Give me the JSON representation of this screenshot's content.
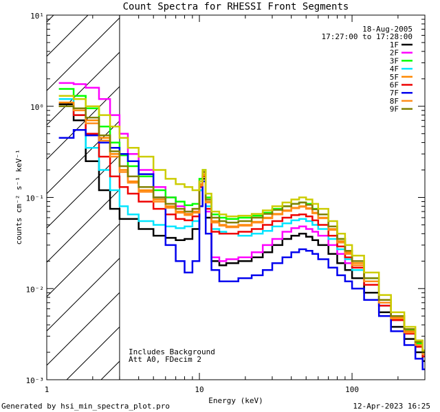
{
  "chart_data": {
    "type": "line",
    "title": "Count Spectra for RHESSI Front Segments",
    "xlabel": "Energy (keV)",
    "ylabel": "counts cm⁻² s⁻¹ keV⁻¹",
    "xscale": "log",
    "yscale": "log",
    "xlim": [
      1,
      300
    ],
    "ylim": [
      0.001,
      10
    ],
    "x_ticks": [
      {
        "value": 1,
        "label": "1"
      },
      {
        "value": 10,
        "label": "10"
      },
      {
        "value": 100,
        "label": "100"
      }
    ],
    "y_ticks": [
      {
        "value": 0.001,
        "label": "10⁻³"
      },
      {
        "value": 0.01,
        "label": "10⁻²"
      },
      {
        "value": 0.1,
        "label": "10⁻¹"
      },
      {
        "value": 1,
        "label": "10⁰"
      },
      {
        "value": 10,
        "label": "10¹"
      }
    ],
    "shaded_region": {
      "xmin": 1,
      "xmax": 3,
      "style": "diagonal hatch"
    },
    "date": "18-Aug-2005",
    "time_range": "17:27:00 to 17:28:00",
    "annotations": [
      "Includes Background",
      "Att A0, FDecim 2"
    ],
    "legend_position": "top-right",
    "series": [
      {
        "name": "1F",
        "color": "#000000",
        "x": [
          1.2,
          1.5,
          1.8,
          2.2,
          2.6,
          3.0,
          3.4,
          4.0,
          5.0,
          6.0,
          7.0,
          8.0,
          9.0,
          10.0,
          10.5,
          11.0,
          12.0,
          13.5,
          15,
          18,
          22,
          26,
          30,
          35,
          40,
          45,
          50,
          55,
          60,
          70,
          80,
          90,
          100,
          120,
          150,
          180,
          220,
          260,
          290
        ],
        "values": [
          1.05,
          0.7,
          0.25,
          0.12,
          0.075,
          0.058,
          0.058,
          0.045,
          0.038,
          0.036,
          0.034,
          0.035,
          0.045,
          0.12,
          0.16,
          0.06,
          0.02,
          0.018,
          0.019,
          0.02,
          0.022,
          0.025,
          0.03,
          0.035,
          0.038,
          0.04,
          0.037,
          0.034,
          0.03,
          0.024,
          0.019,
          0.016,
          0.013,
          0.009,
          0.0055,
          0.0038,
          0.0028,
          0.002,
          0.0016
        ]
      },
      {
        "name": "2F",
        "color": "#ff00ff",
        "x": [
          1.2,
          1.5,
          1.8,
          2.2,
          2.6,
          3.0,
          3.4,
          4.0,
          5.0,
          6.0,
          7.0,
          8.0,
          9.0,
          10.0,
          10.5,
          11.0,
          12.0,
          13.5,
          15,
          18,
          22,
          26,
          30,
          35,
          40,
          45,
          50,
          55,
          60,
          70,
          80,
          90,
          100,
          120,
          150,
          180,
          220,
          260,
          290
        ],
        "values": [
          1.8,
          1.75,
          1.6,
          1.2,
          0.8,
          0.5,
          0.3,
          0.2,
          0.13,
          0.1,
          0.08,
          0.07,
          0.075,
          0.15,
          0.19,
          0.07,
          0.022,
          0.02,
          0.021,
          0.022,
          0.025,
          0.03,
          0.035,
          0.042,
          0.046,
          0.048,
          0.045,
          0.042,
          0.038,
          0.03,
          0.024,
          0.019,
          0.016,
          0.011,
          0.0065,
          0.0045,
          0.0032,
          0.0023,
          0.0018
        ]
      },
      {
        "name": "3F",
        "color": "#00ff00",
        "x": [
          1.2,
          1.5,
          1.8,
          2.2,
          2.6,
          3.0,
          3.4,
          4.0,
          5.0,
          6.0,
          7.0,
          8.0,
          9.0,
          10.0,
          10.5,
          11.0,
          12.0,
          13.5,
          15,
          18,
          22,
          26,
          30,
          35,
          40,
          45,
          50,
          55,
          60,
          70,
          80,
          90,
          100,
          120,
          150,
          180,
          220,
          260,
          290
        ],
        "values": [
          1.55,
          1.3,
          0.95,
          0.6,
          0.4,
          0.29,
          0.22,
          0.17,
          0.12,
          0.1,
          0.09,
          0.082,
          0.085,
          0.16,
          0.2,
          0.1,
          0.065,
          0.06,
          0.058,
          0.06,
          0.063,
          0.068,
          0.075,
          0.08,
          0.085,
          0.088,
          0.085,
          0.075,
          0.065,
          0.048,
          0.035,
          0.026,
          0.02,
          0.013,
          0.0075,
          0.005,
          0.0035,
          0.0025,
          0.002
        ]
      },
      {
        "name": "4F",
        "color": "#00e5ff",
        "x": [
          1.2,
          1.5,
          1.8,
          2.2,
          2.6,
          3.0,
          3.4,
          4.0,
          5.0,
          6.0,
          7.0,
          8.0,
          9.0,
          10.0,
          10.5,
          11.0,
          12.0,
          13.5,
          15,
          18,
          22,
          26,
          30,
          35,
          40,
          45,
          50,
          55,
          60,
          70,
          80,
          90,
          100,
          120,
          150,
          180,
          220,
          260,
          290
        ],
        "values": [
          1.2,
          0.8,
          0.35,
          0.2,
          0.12,
          0.08,
          0.065,
          0.055,
          0.05,
          0.048,
          0.046,
          0.048,
          0.055,
          0.12,
          0.17,
          0.08,
          0.045,
          0.042,
          0.04,
          0.038,
          0.04,
          0.043,
          0.048,
          0.052,
          0.056,
          0.058,
          0.055,
          0.05,
          0.045,
          0.035,
          0.027,
          0.021,
          0.016,
          0.011,
          0.0065,
          0.0045,
          0.0032,
          0.0023,
          0.0018
        ]
      },
      {
        "name": "5F",
        "color": "#ff8800",
        "x": [
          1.2,
          1.5,
          1.8,
          2.2,
          2.6,
          3.0,
          3.4,
          4.0,
          5.0,
          6.0,
          7.0,
          8.0,
          9.0,
          10.0,
          10.5,
          11.0,
          12.0,
          13.5,
          15,
          18,
          22,
          26,
          30,
          35,
          40,
          45,
          50,
          55,
          60,
          70,
          80,
          90,
          100,
          120,
          150,
          180,
          220,
          260,
          290
        ],
        "values": [
          1.1,
          0.95,
          0.7,
          0.45,
          0.3,
          0.2,
          0.15,
          0.12,
          0.095,
          0.08,
          0.07,
          0.066,
          0.07,
          0.14,
          0.18,
          0.09,
          0.055,
          0.05,
          0.048,
          0.05,
          0.054,
          0.06,
          0.066,
          0.072,
          0.077,
          0.08,
          0.076,
          0.068,
          0.06,
          0.045,
          0.033,
          0.025,
          0.019,
          0.012,
          0.007,
          0.0048,
          0.0034,
          0.0024,
          0.0019
        ]
      },
      {
        "name": "6F",
        "color": "#ee0000",
        "x": [
          1.2,
          1.5,
          1.8,
          2.2,
          2.6,
          3.0,
          3.4,
          4.0,
          5.0,
          6.0,
          7.0,
          8.0,
          9.0,
          10.0,
          10.5,
          11.0,
          12.0,
          13.5,
          15,
          18,
          22,
          26,
          30,
          35,
          40,
          45,
          50,
          55,
          60,
          70,
          80,
          90,
          100,
          120,
          150,
          180,
          220,
          260,
          290
        ],
        "values": [
          1.0,
          0.8,
          0.5,
          0.28,
          0.17,
          0.13,
          0.11,
          0.09,
          0.075,
          0.065,
          0.058,
          0.056,
          0.062,
          0.13,
          0.17,
          0.075,
          0.042,
          0.04,
          0.04,
          0.042,
          0.045,
          0.05,
          0.055,
          0.06,
          0.064,
          0.065,
          0.062,
          0.056,
          0.05,
          0.038,
          0.029,
          0.022,
          0.017,
          0.011,
          0.0065,
          0.0045,
          0.0032,
          0.0023,
          0.0018
        ]
      },
      {
        "name": "7F",
        "color": "#0000ee",
        "x": [
          1.2,
          1.5,
          1.8,
          2.2,
          2.6,
          3.0,
          3.4,
          4.0,
          5.0,
          6.0,
          7.0,
          8.0,
          9.0,
          10.0,
          10.5,
          11.0,
          12.0,
          13.5,
          15,
          18,
          22,
          26,
          30,
          35,
          40,
          45,
          50,
          55,
          60,
          70,
          80,
          90,
          100,
          120,
          150,
          180,
          220,
          260,
          290
        ],
        "values": [
          0.45,
          0.55,
          0.48,
          0.4,
          0.35,
          0.3,
          0.25,
          0.18,
          0.1,
          0.03,
          0.02,
          0.015,
          0.02,
          0.08,
          0.15,
          0.04,
          0.016,
          0.012,
          0.012,
          0.013,
          0.014,
          0.016,
          0.019,
          0.022,
          0.025,
          0.027,
          0.026,
          0.024,
          0.021,
          0.017,
          0.014,
          0.012,
          0.01,
          0.0075,
          0.005,
          0.0034,
          0.0024,
          0.0017,
          0.0013
        ]
      },
      {
        "name": "8F",
        "color": "#ff8c1a",
        "x": [
          1.2,
          1.5,
          1.8,
          2.2,
          2.6,
          3.0,
          3.4,
          4.0,
          5.0,
          6.0,
          7.0,
          8.0,
          9.0,
          10.0,
          10.5,
          11.0,
          12.0,
          13.5,
          15,
          18,
          22,
          26,
          30,
          35,
          40,
          45,
          50,
          55,
          60,
          70,
          80,
          90,
          100,
          120,
          150,
          180,
          220,
          260,
          290
        ],
        "values": [
          1.0,
          0.9,
          0.65,
          0.42,
          0.28,
          0.19,
          0.145,
          0.115,
          0.09,
          0.077,
          0.068,
          0.064,
          0.068,
          0.135,
          0.175,
          0.088,
          0.053,
          0.049,
          0.047,
          0.049,
          0.053,
          0.059,
          0.065,
          0.071,
          0.076,
          0.079,
          0.075,
          0.067,
          0.059,
          0.044,
          0.032,
          0.024,
          0.018,
          0.012,
          0.007,
          0.0047,
          0.0033,
          0.0024,
          0.0019
        ]
      },
      {
        "name": "9F",
        "color": "#808000",
        "x": [
          1.2,
          1.5,
          1.8,
          2.2,
          2.6,
          3.0,
          3.4,
          4.0,
          5.0,
          6.0,
          7.0,
          8.0,
          9.0,
          10.0,
          10.5,
          11.0,
          12.0,
          13.5,
          15,
          18,
          22,
          26,
          30,
          35,
          40,
          45,
          50,
          55,
          60,
          70,
          80,
          90,
          100,
          120,
          150,
          180,
          220,
          260,
          290
        ],
        "values": [
          1.0,
          0.95,
          0.75,
          0.48,
          0.32,
          0.22,
          0.17,
          0.13,
          0.1,
          0.085,
          0.075,
          0.07,
          0.075,
          0.15,
          0.19,
          0.095,
          0.06,
          0.055,
          0.053,
          0.055,
          0.06,
          0.066,
          0.073,
          0.08,
          0.085,
          0.088,
          0.083,
          0.074,
          0.065,
          0.048,
          0.035,
          0.026,
          0.02,
          0.013,
          0.0075,
          0.005,
          0.0036,
          0.0026,
          0.002
        ]
      },
      {
        "name": "",
        "color": "#cccc00",
        "x": [
          1.2,
          1.5,
          1.8,
          2.2,
          2.6,
          3.0,
          3.4,
          4.0,
          5.0,
          6.0,
          7.0,
          8.0,
          9.0,
          10.0,
          10.5,
          11.0,
          12.0,
          13.5,
          15,
          18,
          22,
          26,
          30,
          35,
          40,
          45,
          50,
          55,
          60,
          70,
          80,
          90,
          100,
          120,
          150,
          180,
          220,
          260,
          290
        ],
        "values": [
          1.3,
          1.2,
          1.0,
          0.8,
          0.6,
          0.45,
          0.35,
          0.28,
          0.2,
          0.16,
          0.14,
          0.13,
          0.12,
          0.15,
          0.2,
          0.11,
          0.07,
          0.065,
          0.062,
          0.063,
          0.066,
          0.072,
          0.08,
          0.088,
          0.095,
          0.1,
          0.095,
          0.085,
          0.075,
          0.055,
          0.04,
          0.03,
          0.023,
          0.015,
          0.0085,
          0.0055,
          0.0038,
          0.0027,
          0.0021
        ]
      }
    ]
  },
  "footer": {
    "generated_by": "Generated by hsi_min_spectra_plot.pro",
    "timestamp": "12-Apr-2023 16:25"
  }
}
